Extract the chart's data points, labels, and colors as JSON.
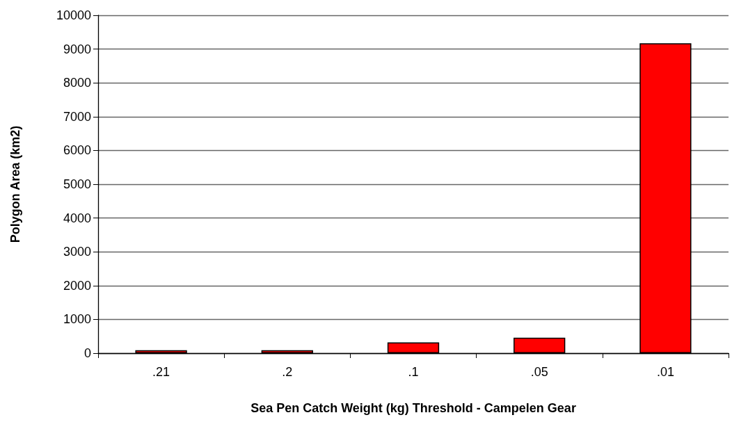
{
  "chart_data": {
    "type": "bar",
    "xlabel": "Sea Pen Catch Weight (kg) Threshold - Campelen Gear",
    "ylabel": "Polygon Area (km2)",
    "categories": [
      ".21",
      ".2",
      ".1",
      ".05",
      ".01"
    ],
    "values": [
      90,
      90,
      320,
      460,
      9170
    ],
    "color": "#ff0000",
    "ylim": [
      0,
      10000
    ],
    "yticks": [
      0,
      1000,
      2000,
      3000,
      4000,
      5000,
      6000,
      7000,
      8000,
      9000,
      10000
    ],
    "grid": true
  }
}
